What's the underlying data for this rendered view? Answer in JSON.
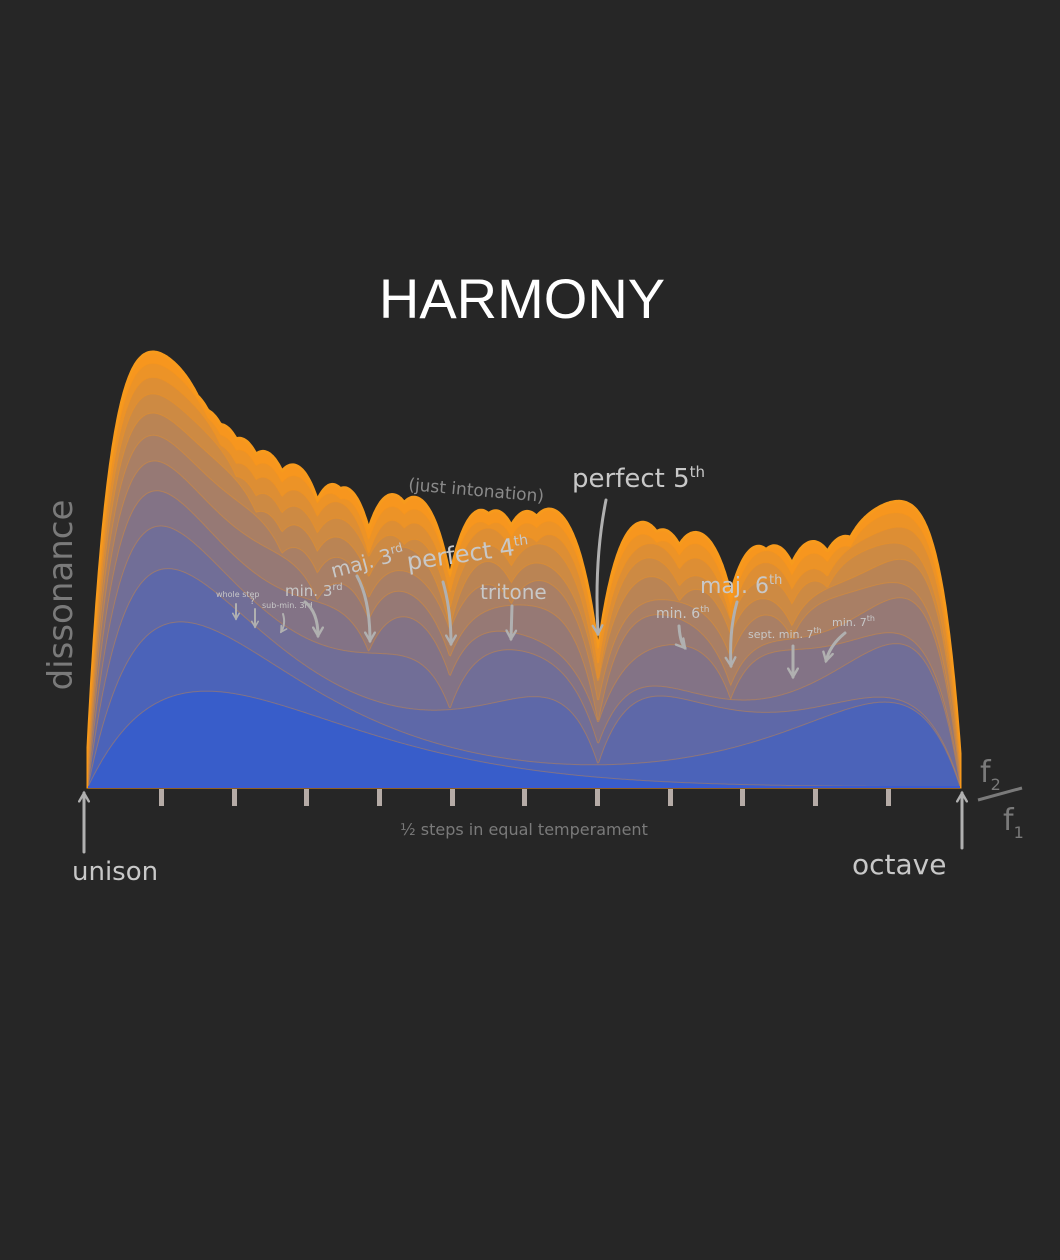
{
  "title": "HARMONY",
  "y_axis_label": "dissonance",
  "x_axis_label": "½ steps in equal temperament",
  "ratio": {
    "numerator": {
      "letter": "f",
      "index": "2"
    },
    "denominator": {
      "letter": "f",
      "index": "1"
    }
  },
  "endpoints": {
    "left": "unison",
    "right": "octave"
  },
  "note": "(just intonation)",
  "intervals": [
    {
      "text": "whole step"
    },
    {
      "text": "?"
    },
    {
      "text": "sub-min. 3rd"
    },
    {
      "text": "min. 3",
      "sup": "rd"
    },
    {
      "text": "maj. 3",
      "sup": "rd"
    },
    {
      "text": "perfect 4",
      "sup": "th"
    },
    {
      "text": "tritone"
    },
    {
      "text": "perfect 5",
      "sup": "th"
    },
    {
      "text": "min. 6",
      "sup": "th"
    },
    {
      "text": "maj. 6",
      "sup": "th"
    },
    {
      "text": "sept. min. 7",
      "sup": "th"
    },
    {
      "text": "min. 7",
      "sup": "th"
    }
  ]
}
